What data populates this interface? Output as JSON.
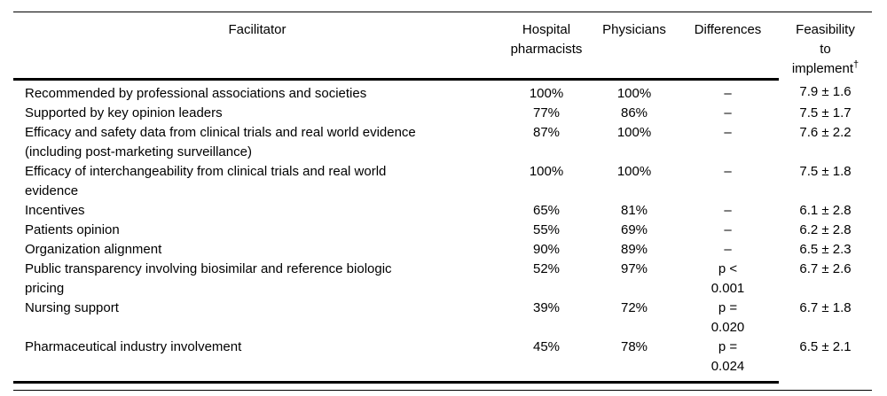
{
  "table": {
    "header": {
      "facilitator": "Facilitator",
      "hospital_pharmacists": "Hospital\npharmacists",
      "physicians": "Physicians",
      "differences": "Differences",
      "feasibility": "Feasibility\nto\nimplement",
      "feasibility_note_marker": "†"
    },
    "rows": [
      {
        "facilitator": "Recommended by professional associations and societies",
        "hospital_pharmacists": "100%",
        "physicians": "100%",
        "difference": "–",
        "feasibility": "7.9 ± 1.6"
      },
      {
        "facilitator": "Supported by key opinion leaders",
        "hospital_pharmacists": "77%",
        "physicians": "86%",
        "difference": "–",
        "feasibility": "7.5 ± 1.7"
      },
      {
        "facilitator": "Efficacy and safety data from clinical trials and real world evidence\n(including post-marketing surveillance)",
        "hospital_pharmacists": "87%",
        "physicians": "100%",
        "difference": "–",
        "feasibility": "7.6 ± 2.2"
      },
      {
        "facilitator": "Efficacy of interchangeability from clinical trials and real world\nevidence",
        "hospital_pharmacists": "100%",
        "physicians": "100%",
        "difference": "–",
        "feasibility": "7.5 ± 1.8"
      },
      {
        "facilitator": "Incentives",
        "hospital_pharmacists": "65%",
        "physicians": "81%",
        "difference": "–",
        "feasibility": "6.1 ± 2.8"
      },
      {
        "facilitator": "Patients opinion",
        "hospital_pharmacists": "55%",
        "physicians": "69%",
        "difference": "–",
        "feasibility": "6.2 ± 2.8"
      },
      {
        "facilitator": "Organization alignment",
        "hospital_pharmacists": "90%",
        "physicians": "89%",
        "difference": "–",
        "feasibility": "6.5 ± 2.3"
      },
      {
        "facilitator": "Public transparency involving biosimilar and reference biologic\npricing",
        "hospital_pharmacists": "52%",
        "physicians": "97%",
        "difference": "p <\n0.001",
        "feasibility": "6.7 ± 2.6"
      },
      {
        "facilitator": "Nursing support",
        "hospital_pharmacists": "39%",
        "physicians": "72%",
        "difference": "p =\n0.020",
        "feasibility": "6.7 ± 1.8"
      },
      {
        "facilitator": "Pharmaceutical industry involvement",
        "hospital_pharmacists": "45%",
        "physicians": "78%",
        "difference": "p =\n0.024",
        "feasibility": "6.5 ± 2.1"
      }
    ]
  },
  "colors": {
    "text": "#000000",
    "background": "#ffffff",
    "rule": "#000000"
  }
}
